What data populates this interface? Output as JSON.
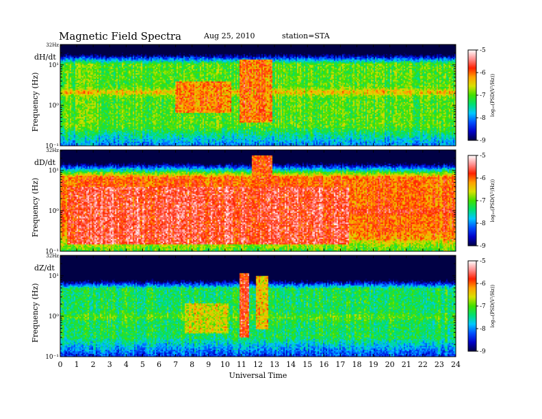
{
  "header": {
    "title": "Magnetic  Field  Spectra",
    "date": "Aug 25, 2010",
    "station": "station=STA"
  },
  "chart_data": {
    "type": "heatmap",
    "xlabel": "Universal Time",
    "x_ticks": [
      "0",
      "1",
      "2",
      "3",
      "4",
      "5",
      "6",
      "7",
      "8",
      "9",
      "10",
      "11",
      "12",
      "13",
      "14",
      "15",
      "16",
      "17",
      "18",
      "19",
      "20",
      "21",
      "22",
      "23",
      "24"
    ],
    "xlim": [
      0,
      24
    ],
    "ylabel": "Frequency  (Hz)",
    "y_scale": "log",
    "ylim": [
      0.1,
      32
    ],
    "y_ticks": [
      {
        "value": 32,
        "label": "32Hz"
      },
      {
        "value": 10,
        "label": "10¹"
      },
      {
        "value": 1,
        "label": "10⁰"
      },
      {
        "value": 0.1,
        "label": "10⁻¹"
      }
    ],
    "colorbar": {
      "label": "log₁₀(PSD(V²/Hz))",
      "range": [
        -9,
        -5
      ],
      "ticks": [
        "-5",
        "-6",
        "-7",
        "-8",
        "-9"
      ],
      "colormap": [
        "#000044",
        "#0000c8",
        "#0050ff",
        "#00c8ff",
        "#00e070",
        "#40e000",
        "#d8e000",
        "#ffa000",
        "#ff2000",
        "#ff9090",
        "#ffffff"
      ]
    },
    "panels": [
      {
        "name": "dH/dt",
        "background_psd": -7.0,
        "cutoff_hz": 11,
        "band_hz": 2.2,
        "band_strength": 0.6,
        "events": [
          {
            "t_start": 6.9,
            "t_end": 10.3,
            "f_low": 0.7,
            "f_high": 4,
            "psd": -5.9
          },
          {
            "t_start": 10.8,
            "t_end": 12.8,
            "f_low": 0.4,
            "f_high": 14,
            "psd": -5.8
          }
        ]
      },
      {
        "name": "dD/dt",
        "background_psd": -6.0,
        "cutoff_hz": 7,
        "band_hz": 1.0,
        "band_strength": 0.3,
        "events": [
          {
            "t_start": 0.4,
            "t_end": 17.5,
            "f_low": 0.15,
            "f_high": 4,
            "psd": -5.4
          },
          {
            "t_start": 17.8,
            "t_end": 24,
            "f_low": 0.2,
            "f_high": 3,
            "psd": -5.9
          },
          {
            "t_start": 11.6,
            "t_end": 12.8,
            "f_low": 0.4,
            "f_high": 25,
            "psd": -5.6
          }
        ]
      },
      {
        "name": "dZ/dt",
        "background_psd": -7.3,
        "cutoff_hz": 5,
        "band_hz": 1.0,
        "band_strength": 0.3,
        "events": [
          {
            "t_start": 7.5,
            "t_end": 10.2,
            "f_low": 0.4,
            "f_high": 2.2,
            "psd": -6.3
          },
          {
            "t_start": 10.8,
            "t_end": 11.4,
            "f_low": 0.3,
            "f_high": 12,
            "psd": -5.6
          },
          {
            "t_start": 11.8,
            "t_end": 12.6,
            "f_low": 0.5,
            "f_high": 10,
            "psd": -6.1
          }
        ]
      }
    ]
  }
}
